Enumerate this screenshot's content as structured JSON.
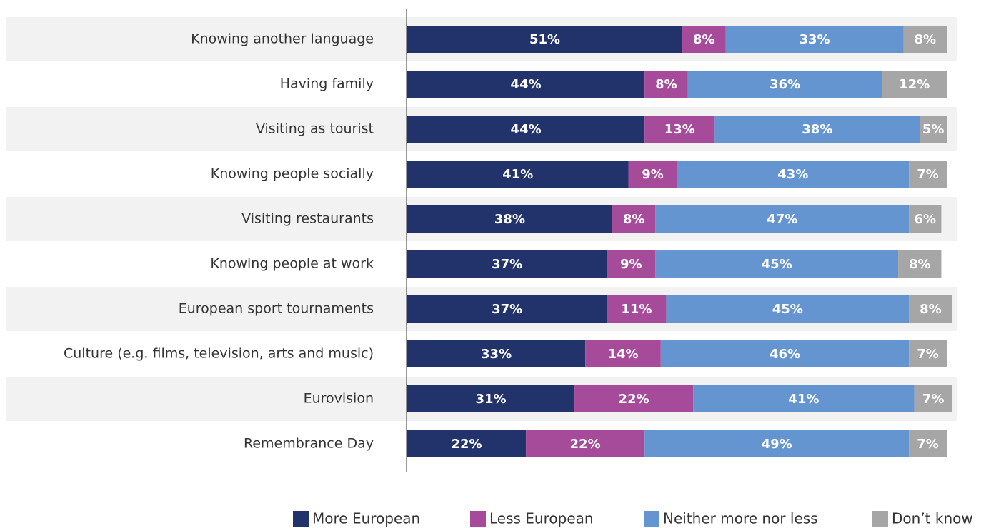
{
  "chart_data": {
    "type": "stacked_bar_horizontal",
    "categories": [
      "Knowing another language",
      "Having family",
      "Visiting as tourist",
      "Knowing people socially",
      "Visiting restaurants",
      "Knowing people at work",
      "European sport tournaments",
      "Culture (e.g. films, television, arts and music)",
      "Eurovision",
      "Remembrance Day"
    ],
    "series": [
      {
        "name": "More European",
        "color": "#22336b",
        "values": [
          51,
          44,
          44,
          41,
          38,
          37,
          37,
          33,
          31,
          22
        ],
        "value_labels": [
          "51%",
          "44%",
          "44%",
          "41%",
          "38%",
          "37%",
          "37%",
          "33%",
          "31%",
          "22%"
        ]
      },
      {
        "name": "Less European",
        "color": "#a64a9a",
        "values": [
          8,
          8,
          13,
          9,
          8,
          9,
          11,
          14,
          22,
          22
        ],
        "value_labels": [
          "8%",
          "8%",
          "13%",
          "9%",
          "8%",
          "9%",
          "11%",
          "14%",
          "22%",
          "22%"
        ]
      },
      {
        "name": "Neither more nor less",
        "color": "#6495d0",
        "values": [
          33,
          36,
          38,
          43,
          47,
          45,
          45,
          46,
          41,
          49
        ],
        "value_labels": [
          "33%",
          "36%",
          "38%",
          "43%",
          "47%",
          "45%",
          "45%",
          "46%",
          "41%",
          "49%"
        ]
      },
      {
        "name": "Don’t know",
        "color": "#a6a6a6",
        "values": [
          8,
          12,
          5,
          7,
          6,
          8,
          8,
          7,
          7,
          7
        ],
        "value_labels": [
          "8%",
          "12%",
          "5%",
          "7%",
          "6%",
          "8%",
          "8%",
          "7%",
          "7%",
          "7%"
        ]
      }
    ],
    "legend": "bottom"
  }
}
